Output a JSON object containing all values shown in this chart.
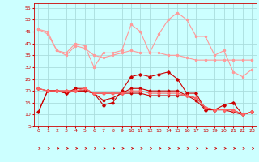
{
  "x": [
    0,
    1,
    2,
    3,
    4,
    5,
    6,
    7,
    8,
    9,
    10,
    11,
    12,
    13,
    14,
    15,
    16,
    17,
    18,
    19,
    20,
    21,
    22,
    23
  ],
  "line1_y": [
    46,
    45,
    37,
    36,
    40,
    39,
    30,
    36,
    36,
    37,
    48,
    45,
    36,
    44,
    50,
    53,
    50,
    43,
    43,
    35,
    37,
    28,
    26,
    29
  ],
  "line2_y": [
    46,
    44,
    37,
    35,
    39,
    38,
    35,
    34,
    35,
    36,
    37,
    36,
    36,
    36,
    35,
    35,
    34,
    33,
    33,
    33,
    33,
    33,
    33,
    33
  ],
  "line3_y": [
    21,
    20,
    20,
    19,
    21,
    21,
    19,
    14,
    15,
    20,
    26,
    27,
    26,
    27,
    28,
    25,
    19,
    19,
    12,
    12,
    14,
    15,
    10,
    11
  ],
  "line4_y": [
    11,
    20,
    20,
    19,
    20,
    20,
    19,
    19,
    19,
    19,
    19,
    19,
    18,
    18,
    18,
    18,
    18,
    17,
    13,
    12,
    12,
    11,
    10,
    11
  ],
  "line5_y": [
    11,
    20,
    20,
    20,
    20,
    20,
    19,
    16,
    17,
    19,
    21,
    21,
    20,
    20,
    20,
    20,
    18,
    16,
    12,
    12,
    12,
    12,
    10,
    11
  ],
  "line6_y": [
    21,
    20,
    20,
    20,
    20,
    21,
    19,
    19,
    19,
    19,
    20,
    20,
    19,
    19,
    19,
    19,
    18,
    17,
    13,
    12,
    12,
    12,
    10,
    11
  ],
  "color_light": "#FF9999",
  "color_dark": "#CC0000",
  "color_medium": "#FF6666",
  "bg_color": "#CCFFFF",
  "grid_color": "#AADDDD",
  "ylabel_ticks": [
    5,
    10,
    15,
    20,
    25,
    30,
    35,
    40,
    45,
    50,
    55
  ],
  "ylim": [
    5,
    57
  ],
  "xlim": [
    -0.5,
    23.5
  ]
}
